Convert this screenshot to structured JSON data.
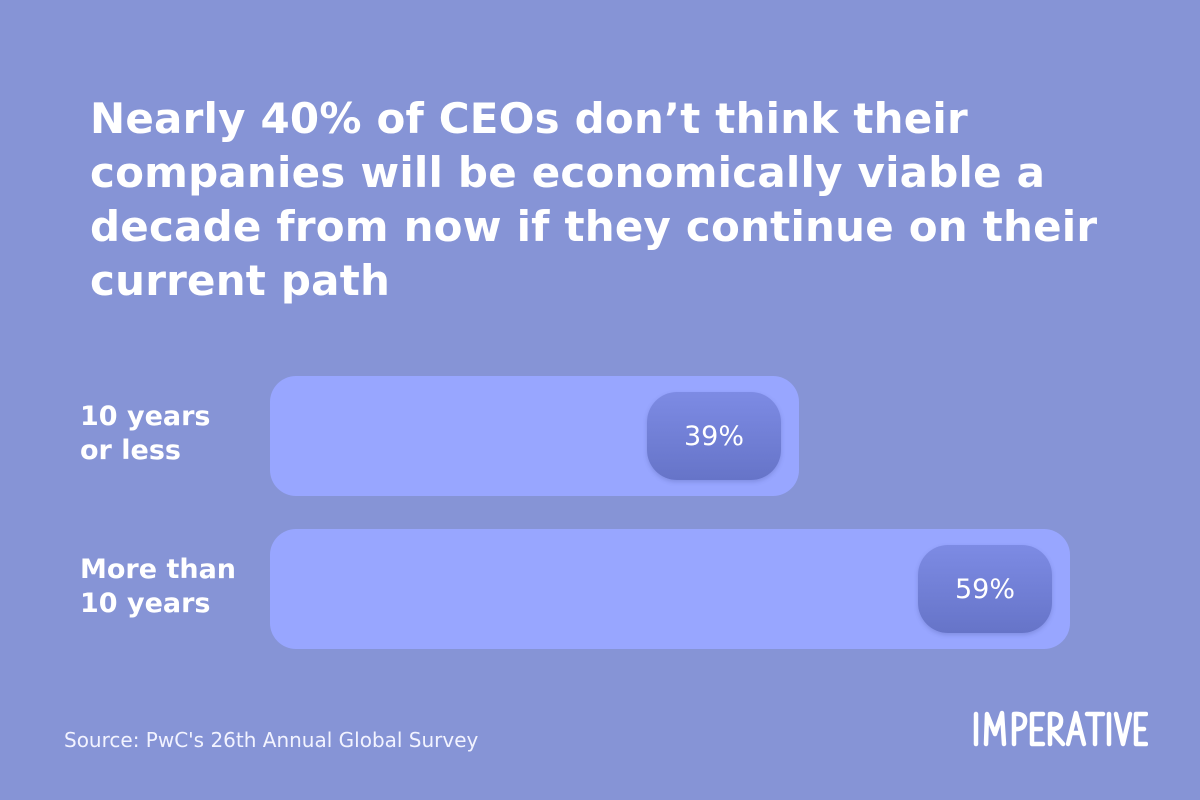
{
  "headline": "Nearly 40% of CEOs don’t think their companies will be economically viable a decade from now if they continue on their current path",
  "source": "Source: PwC's 26th Annual Global Survey",
  "logo": "IMPERATIVE",
  "colors": {
    "background": "#8694d6",
    "bar": "#98a6ff",
    "pill": "#6f7dd4",
    "text": "#ffffff"
  },
  "chart_data": {
    "type": "bar",
    "orientation": "horizontal",
    "categories": [
      "10 years or less",
      "More than 10 years"
    ],
    "category_lines": [
      [
        "10 years",
        "or less"
      ],
      [
        "More than",
        "10 years"
      ]
    ],
    "values": [
      39,
      59
    ],
    "value_labels": [
      "39%",
      "59%"
    ],
    "title": "Nearly 40% of CEOs don’t think their companies will be economically viable a decade from now if they continue on their current path",
    "xlabel": "",
    "ylabel": "",
    "xlim": [
      0,
      100
    ],
    "grid": false,
    "legend": "none"
  }
}
